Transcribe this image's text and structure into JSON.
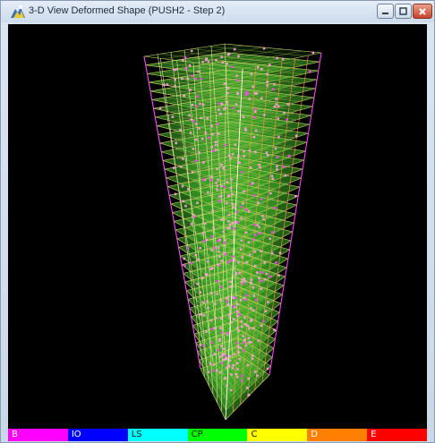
{
  "window": {
    "title": "3-D View  Deformed Shape (PUSH2 - Step 2)"
  },
  "icons": {
    "app": "etabs-app-icon",
    "minimize": "minimize-icon",
    "maximize": "maximize-icon",
    "close": "close-icon"
  },
  "legend": {
    "items": [
      {
        "label": "B",
        "color": "#ff00ff"
      },
      {
        "label": "IO",
        "color": "#0000ff"
      },
      {
        "label": "LS",
        "color": "#00ffff"
      },
      {
        "label": "CP",
        "color": "#00ff00"
      },
      {
        "label": "C",
        "color": "#ffff00"
      },
      {
        "label": "D",
        "color": "#ff8000"
      },
      {
        "label": "E",
        "color": "#ff0000"
      }
    ]
  }
}
